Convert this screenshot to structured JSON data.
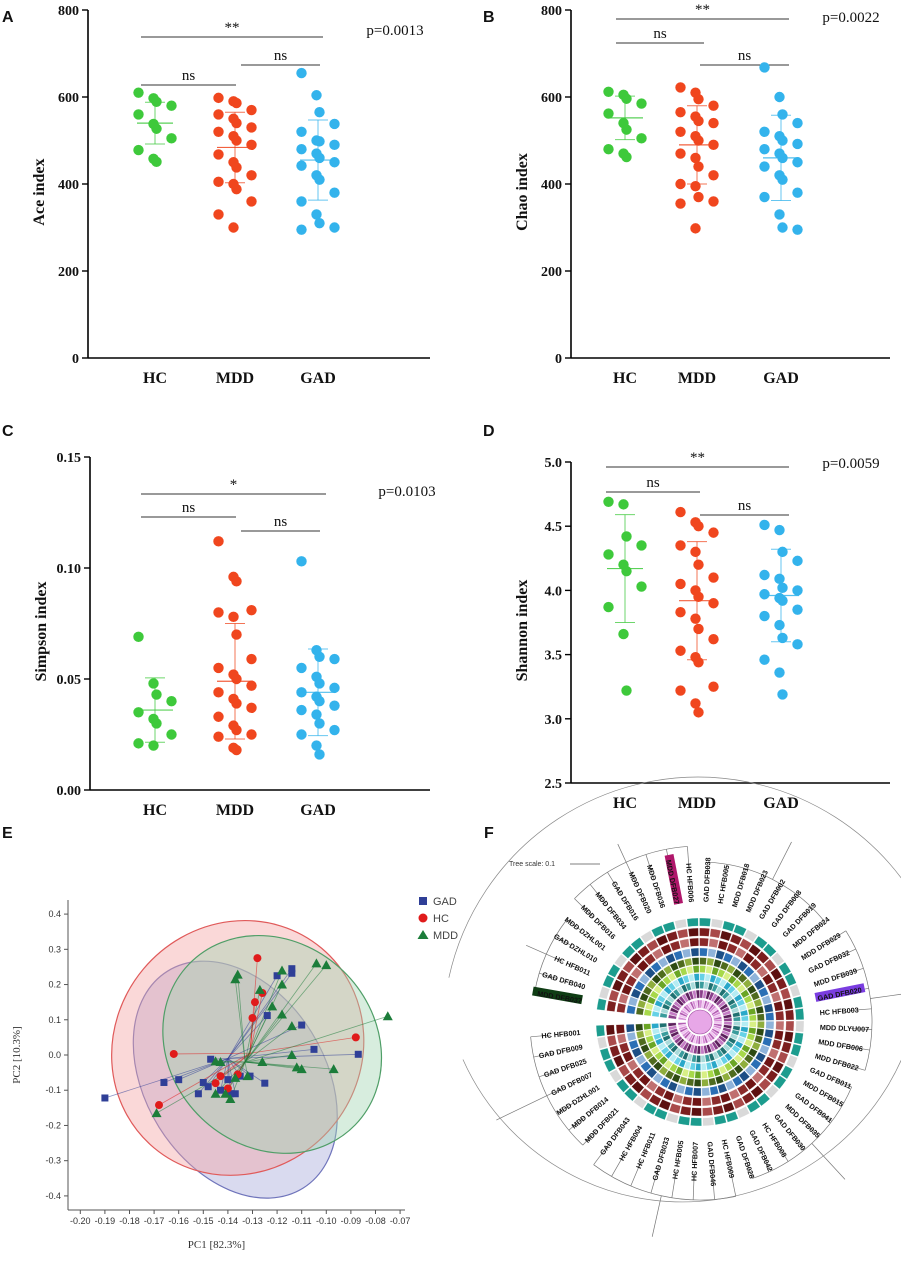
{
  "colors": {
    "HC": "#3ec93b",
    "MDD": "#f0461e",
    "GAD": "#33b3ec",
    "pca_GAD": "#2f3f97",
    "pca_HC": "#e01b1b",
    "pca_MDD": "#1c7d3a"
  },
  "chart_data": [
    {
      "panel": "A",
      "type": "scatter",
      "ylabel": "Ace index",
      "categories": [
        "HC",
        "MDD",
        "GAD"
      ],
      "ylim": [
        0,
        800
      ],
      "yticks": [
        0,
        200,
        400,
        600,
        800
      ],
      "ytick_labels": [
        "0",
        "200",
        "400",
        "600",
        "800"
      ],
      "pvalue": "p=0.0013",
      "series": [
        {
          "name": "HC",
          "values": [
            610,
            597,
            589,
            580,
            560,
            538,
            527,
            505,
            478,
            458,
            451
          ],
          "mean": 540,
          "sd": 48
        },
        {
          "name": "MDD",
          "values": [
            598,
            590,
            586,
            570,
            560,
            550,
            540,
            530,
            520,
            510,
            500,
            490,
            468,
            450,
            438,
            420,
            405,
            400,
            388,
            360,
            330,
            300
          ],
          "mean": 484,
          "sd": 81
        },
        {
          "name": "GAD",
          "values": [
            655,
            604,
            565,
            538,
            520,
            500,
            498,
            490,
            480,
            470,
            460,
            450,
            442,
            420,
            410,
            380,
            360,
            330,
            310,
            300,
            295
          ],
          "mean": 455,
          "sd": 92
        }
      ],
      "comparisons": [
        {
          "groups": [
            "HC",
            "GAD"
          ],
          "label": "**"
        },
        {
          "groups": [
            "HC",
            "MDD"
          ],
          "label": "ns"
        },
        {
          "groups": [
            "MDD",
            "GAD"
          ],
          "label": "ns"
        }
      ]
    },
    {
      "panel": "B",
      "type": "scatter",
      "ylabel": "Chao index",
      "categories": [
        "HC",
        "MDD",
        "GAD"
      ],
      "ylim": [
        0,
        800
      ],
      "yticks": [
        0,
        200,
        400,
        600,
        800
      ],
      "ytick_labels": [
        "0",
        "200",
        "400",
        "600",
        "800"
      ],
      "pvalue": "p=0.0022",
      "series": [
        {
          "name": "HC",
          "values": [
            612,
            605,
            596,
            585,
            562,
            540,
            525,
            505,
            480,
            470,
            462
          ],
          "mean": 552,
          "sd": 50
        },
        {
          "name": "MDD",
          "values": [
            622,
            610,
            595,
            580,
            565,
            555,
            545,
            540,
            520,
            510,
            500,
            490,
            470,
            460,
            440,
            420,
            400,
            395,
            370,
            360,
            355,
            298
          ],
          "mean": 490,
          "sd": 90
        },
        {
          "name": "GAD",
          "values": [
            668,
            600,
            560,
            540,
            520,
            510,
            500,
            492,
            480,
            470,
            460,
            450,
            440,
            420,
            410,
            380,
            370,
            330,
            300,
            295
          ],
          "mean": 460,
          "sd": 98
        }
      ],
      "comparisons": [
        {
          "groups": [
            "HC",
            "GAD"
          ],
          "label": "**"
        },
        {
          "groups": [
            "HC",
            "MDD"
          ],
          "label": "ns"
        },
        {
          "groups": [
            "MDD",
            "GAD"
          ],
          "label": "ns"
        }
      ]
    },
    {
      "panel": "C",
      "type": "scatter",
      "ylabel": "Simpson index",
      "categories": [
        "HC",
        "MDD",
        "GAD"
      ],
      "ylim": [
        0,
        0.15
      ],
      "yticks": [
        0,
        0.05,
        0.1,
        0.15
      ],
      "ytick_labels": [
        "0.00",
        "0.05",
        "0.10",
        "0.15"
      ],
      "pvalue": "p=0.0103",
      "series": [
        {
          "name": "HC",
          "values": [
            0.069,
            0.048,
            0.043,
            0.04,
            0.035,
            0.032,
            0.03,
            0.025,
            0.021,
            0.02
          ],
          "mean": 0.036,
          "sd": 0.0145
        },
        {
          "name": "MDD",
          "values": [
            0.112,
            0.096,
            0.094,
            0.081,
            0.08,
            0.078,
            0.07,
            0.059,
            0.055,
            0.052,
            0.05,
            0.047,
            0.044,
            0.041,
            0.039,
            0.037,
            0.033,
            0.029,
            0.027,
            0.025,
            0.024,
            0.019,
            0.018
          ],
          "mean": 0.049,
          "sd": 0.026
        },
        {
          "name": "GAD",
          "values": [
            0.103,
            0.063,
            0.06,
            0.059,
            0.055,
            0.051,
            0.048,
            0.046,
            0.044,
            0.042,
            0.04,
            0.038,
            0.036,
            0.034,
            0.03,
            0.027,
            0.025,
            0.02,
            0.016
          ],
          "mean": 0.044,
          "sd": 0.0195
        }
      ],
      "comparisons": [
        {
          "groups": [
            "HC",
            "GAD"
          ],
          "label": "*"
        },
        {
          "groups": [
            "HC",
            "MDD"
          ],
          "label": "ns"
        },
        {
          "groups": [
            "MDD",
            "GAD"
          ],
          "label": "ns"
        }
      ]
    },
    {
      "panel": "D",
      "type": "scatter",
      "ylabel": "Shannon index",
      "categories": [
        "HC",
        "MDD",
        "GAD"
      ],
      "ylim": [
        2.5,
        5.0
      ],
      "yticks": [
        2.5,
        3.0,
        3.5,
        4.0,
        4.5,
        5.0
      ],
      "ytick_labels": [
        "2.5",
        "3.0",
        "3.5",
        "4.0",
        "4.5",
        "5.0"
      ],
      "pvalue": "p=0.0059",
      "series": [
        {
          "name": "HC",
          "values": [
            4.69,
            4.67,
            4.42,
            4.35,
            4.28,
            4.2,
            4.15,
            4.03,
            3.87,
            3.66,
            3.22
          ],
          "mean": 4.17,
          "sd": 0.42
        },
        {
          "name": "MDD",
          "values": [
            4.61,
            4.53,
            4.5,
            4.45,
            4.35,
            4.3,
            4.2,
            4.1,
            4.05,
            4.0,
            3.95,
            3.9,
            3.83,
            3.78,
            3.7,
            3.62,
            3.53,
            3.48,
            3.44,
            3.25,
            3.22,
            3.12,
            3.05
          ],
          "mean": 3.92,
          "sd": 0.46
        },
        {
          "name": "GAD",
          "values": [
            4.51,
            4.47,
            4.3,
            4.23,
            4.12,
            4.09,
            4.02,
            4.0,
            3.97,
            3.94,
            3.92,
            3.85,
            3.8,
            3.73,
            3.63,
            3.58,
            3.46,
            3.36,
            3.19
          ],
          "mean": 3.96,
          "sd": 0.36
        }
      ],
      "comparisons": [
        {
          "groups": [
            "HC",
            "GAD"
          ],
          "label": "**"
        },
        {
          "groups": [
            "HC",
            "MDD"
          ],
          "label": "ns"
        },
        {
          "groups": [
            "MDD",
            "GAD"
          ],
          "label": "ns"
        }
      ]
    },
    {
      "panel": "E",
      "type": "scatter",
      "xlabel": "PC1 [82.3%]",
      "ylabel": "PC2 [10.3%]",
      "xlim": [
        -0.205,
        -0.068
      ],
      "ylim": [
        -0.44,
        0.44
      ],
      "xticks": [
        -0.2,
        -0.19,
        -0.18,
        -0.17,
        -0.16,
        -0.15,
        -0.14,
        -0.13,
        -0.12,
        -0.11,
        -0.1,
        -0.09,
        -0.08,
        -0.07
      ],
      "xtick_labels": [
        "-0.20",
        "-0.19",
        "-0.18",
        "-0.17",
        "-0.16",
        "-0.15",
        "-0.14",
        "-0.13",
        "-0.12",
        "-0.11",
        "-0.10",
        "-0.09",
        "-0.08",
        "-0.07"
      ],
      "yticks": [
        -0.4,
        -0.3,
        -0.2,
        -0.1,
        0.0,
        0.1,
        0.2,
        0.3,
        0.4
      ],
      "ytick_labels": [
        "-0.4",
        "-0.3",
        "-0.2",
        "-0.1",
        "0.0",
        "0.1",
        "0.2",
        "0.3",
        "0.4"
      ],
      "legend": [
        "GAD",
        "HC",
        "MDD"
      ],
      "legend_position": "top-right",
      "series": [
        {
          "name": "GAD",
          "marker": "square",
          "centroid": [
            -0.14,
            -0.01
          ],
          "points": [
            [
              -0.19,
              -0.122
            ],
            [
              -0.166,
              -0.078
            ],
            [
              -0.16,
              -0.07
            ],
            [
              -0.15,
              -0.078
            ],
            [
              -0.147,
              -0.012
            ],
            [
              -0.143,
              -0.1
            ],
            [
              -0.152,
              -0.11
            ],
            [
              -0.137,
              -0.11
            ],
            [
              -0.135,
              -0.06
            ],
            [
              -0.139,
              -0.11
            ],
            [
              -0.125,
              -0.08
            ],
            [
              -0.124,
              0.112
            ],
            [
              -0.12,
              0.225
            ],
            [
              -0.114,
              0.232
            ],
            [
              -0.11,
              0.085
            ],
            [
              -0.105,
              0.016
            ],
            [
              -0.087,
              0.002
            ],
            [
              -0.114,
              0.245
            ],
            [
              -0.14,
              -0.07
            ],
            [
              -0.148,
              -0.09
            ],
            [
              -0.131,
              -0.06
            ]
          ]
        },
        {
          "name": "HC",
          "marker": "circle",
          "centroid": [
            -0.131,
            0.005
          ],
          "points": [
            [
              -0.162,
              0.003
            ],
            [
              -0.168,
              -0.142
            ],
            [
              -0.145,
              -0.08
            ],
            [
              -0.14,
              -0.095
            ],
            [
              -0.136,
              -0.055
            ],
            [
              -0.13,
              0.105
            ],
            [
              -0.128,
              0.275
            ],
            [
              -0.129,
              0.15
            ],
            [
              -0.126,
              0.176
            ],
            [
              -0.088,
              0.05
            ],
            [
              -0.143,
              -0.06
            ]
          ]
        },
        {
          "name": "MDD",
          "marker": "triangle",
          "centroid": [
            -0.133,
            -0.02
          ],
          "points": [
            [
              -0.169,
              -0.165
            ],
            [
              -0.145,
              -0.11
            ],
            [
              -0.141,
              -0.11
            ],
            [
              -0.139,
              -0.125
            ],
            [
              -0.145,
              -0.018
            ],
            [
              -0.143,
              -0.02
            ],
            [
              -0.137,
              -0.065
            ],
            [
              -0.137,
              0.215
            ],
            [
              -0.136,
              0.228
            ],
            [
              -0.127,
              0.185
            ],
            [
              -0.122,
              0.138
            ],
            [
              -0.118,
              0.115
            ],
            [
              -0.114,
              0.082
            ],
            [
              -0.118,
              0.2
            ],
            [
              -0.118,
              0.24
            ],
            [
              -0.114,
              0.0
            ],
            [
              -0.126,
              -0.02
            ],
            [
              -0.112,
              -0.035
            ],
            [
              -0.104,
              0.26
            ],
            [
              -0.1,
              0.255
            ],
            [
              -0.11,
              -0.04
            ],
            [
              -0.097,
              -0.04
            ],
            [
              -0.075,
              0.11
            ],
            [
              -0.132,
              -0.06
            ]
          ]
        }
      ],
      "ellipses": [
        {
          "name": "GAD",
          "center": [
            -0.137,
            -0.07
          ],
          "rx": 0.052,
          "ry": 0.255,
          "rotate": 58
        },
        {
          "name": "HC",
          "center": [
            -0.136,
            0.02
          ],
          "rx": 0.05,
          "ry": 0.37,
          "rotate": 40
        },
        {
          "name": "MDD",
          "center": [
            -0.122,
            0.03
          ],
          "rx": 0.047,
          "ry": 0.29,
          "rotate": 44
        }
      ]
    },
    {
      "panel": "F",
      "type": "other",
      "title": "Tree scale: 0.1",
      "leaves_right": [
        "HC HFB006",
        "GAD DFB038",
        "HC HFB005",
        "MDD DFB018",
        "MDD DFB023",
        "GAD DFB002",
        "GAD DFB008",
        "GAD DFB019",
        "MDD DFB024",
        "MDD DFB029",
        "GAD DFB032",
        "MDD DFB039",
        "GAD DFB020",
        "HC HFB003",
        "MDD DLYU007",
        "MDD DFB006",
        "MDD DFB022",
        "GAD DFB011",
        "MDD DFB015",
        "GAD DFB041",
        "MDD DFB035"
      ],
      "leaves_bottom": [
        "GAD DFB030",
        "HC HFB008",
        "GAD DFB042",
        "GAD DFB028",
        "HC HFB009",
        "GAD DFB046",
        "HC HFB007",
        "HC HFB005",
        "GAD DFB033",
        "HC HFB011",
        "HC HFB004"
      ],
      "leaves_left": [
        "GAD DFB043",
        "MDD DFB021",
        "MDD DFB014",
        "MDD DZHL001",
        "GAD DFB007",
        "GAD DFB025",
        "GAD DFB009",
        "HC HFB001",
        "MDD DFB016",
        "MDD DZHL001",
        "GAD DZHL010",
        "HC HFB011",
        "GAD DFB040",
        "MDD DFB037"
      ],
      "leaves_top": [
        "MDD DFB034",
        "GAD DFB016",
        "MDD DFB020",
        "MDD DFB036",
        "MDD DFB027"
      ],
      "highlights": [
        {
          "label": "MDD DFB027",
          "color": "#b0176b"
        },
        {
          "label": "GAD DFB020",
          "color": "#7a3de0"
        },
        {
          "label": "MDD DFB037",
          "color": "#0f3d14"
        }
      ]
    }
  ]
}
